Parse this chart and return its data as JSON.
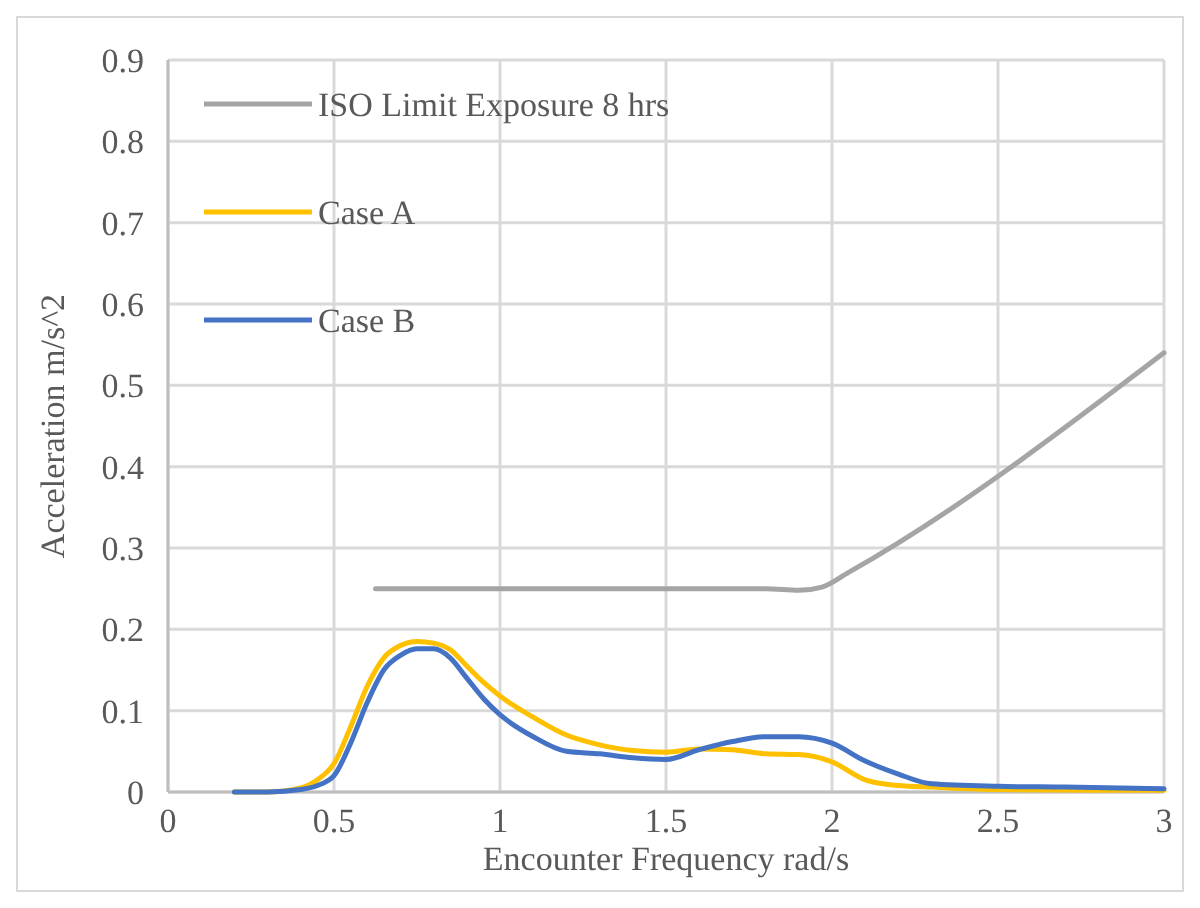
{
  "chart_data": {
    "type": "line",
    "xlabel": "Encounter Frequency rad/s",
    "ylabel": "Acceleration m/s^2",
    "xlim": [
      0,
      3
    ],
    "xticks": [
      0,
      0.5,
      1,
      1.5,
      2,
      2.5,
      3
    ],
    "ylim": [
      0,
      0.9
    ],
    "yticks": [
      0,
      0.1,
      0.2,
      0.3,
      0.4,
      0.5,
      0.6,
      0.7,
      0.8,
      0.9
    ],
    "grid": true,
    "legend": "top left",
    "marker": "none",
    "line_style": "solid",
    "series": [
      {
        "name": "ISO Limit Exposure 8 hrs",
        "color": "#a5a5a5",
        "x": [
          0.625,
          1.8,
          1.9,
          1.97,
          2.05,
          3.0
        ],
        "values": [
          0.25,
          0.25,
          0.248,
          0.252,
          0.27,
          0.54
        ]
      },
      {
        "name": "Case A",
        "color": "#ffc000",
        "x": [
          0.2,
          0.3,
          0.4,
          0.45,
          0.5,
          0.55,
          0.6,
          0.65,
          0.7,
          0.75,
          0.8,
          0.85,
          0.9,
          0.95,
          1.0,
          1.1,
          1.2,
          1.3,
          1.4,
          1.5,
          1.6,
          1.7,
          1.8,
          1.9,
          2.0,
          2.1,
          2.2,
          2.3,
          2.5,
          3.0
        ],
        "values": [
          0,
          0,
          0.005,
          0.015,
          0.035,
          0.08,
          0.13,
          0.165,
          0.18,
          0.185,
          0.183,
          0.175,
          0.155,
          0.135,
          0.118,
          0.092,
          0.07,
          0.058,
          0.051,
          0.049,
          0.053,
          0.052,
          0.047,
          0.046,
          0.037,
          0.015,
          0.008,
          0.006,
          0.003,
          0.002
        ]
      },
      {
        "name": "Case B",
        "color": "#4472c4",
        "x": [
          0.2,
          0.3,
          0.4,
          0.45,
          0.5,
          0.55,
          0.6,
          0.65,
          0.7,
          0.75,
          0.8,
          0.85,
          0.9,
          0.95,
          1.0,
          1.1,
          1.2,
          1.3,
          1.4,
          1.5,
          1.6,
          1.7,
          1.8,
          1.9,
          2.0,
          2.1,
          2.2,
          2.3,
          2.5,
          2.7,
          3.0
        ],
        "values": [
          0,
          0,
          0.003,
          0.008,
          0.02,
          0.06,
          0.11,
          0.15,
          0.168,
          0.176,
          0.176,
          0.165,
          0.14,
          0.115,
          0.095,
          0.068,
          0.05,
          0.047,
          0.042,
          0.04,
          0.052,
          0.062,
          0.068,
          0.068,
          0.06,
          0.038,
          0.022,
          0.01,
          0.007,
          0.006,
          0.004
        ]
      }
    ]
  }
}
